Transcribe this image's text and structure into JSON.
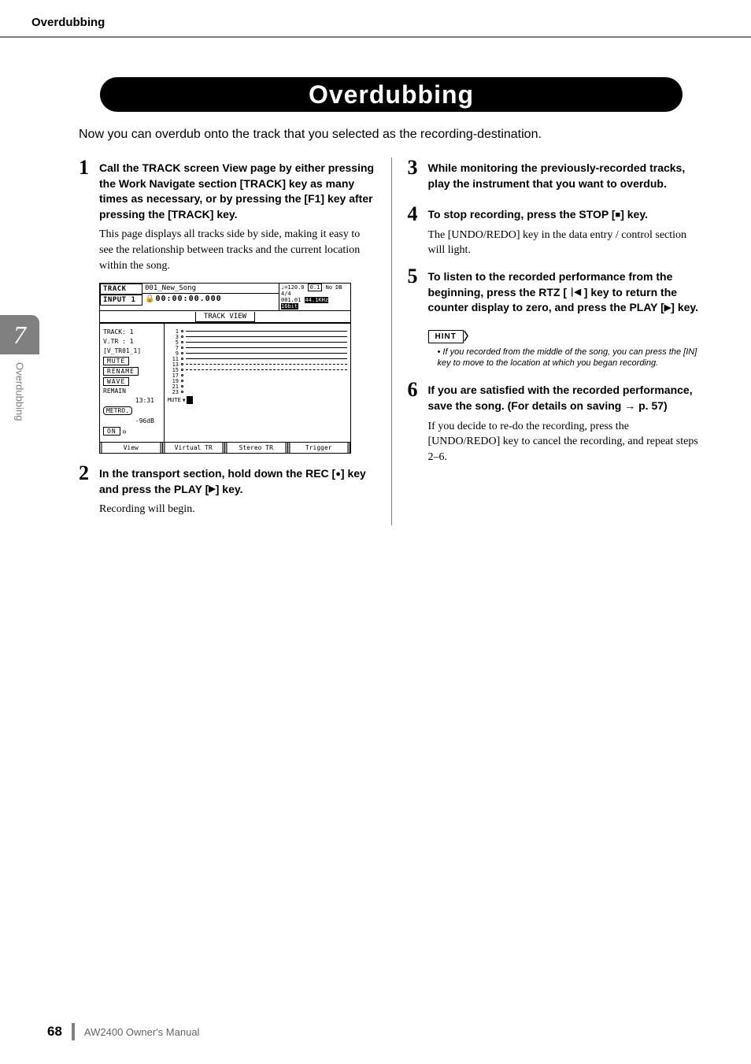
{
  "header": {
    "section": "Overdubbing"
  },
  "chapter_tab": {
    "number": "7",
    "label": "Overdubbing"
  },
  "title": "Overdubbing",
  "intro": "Now you can overdub onto the track that you selected as the recording-destination.",
  "steps": {
    "s1": {
      "num": "1",
      "heading": "Call the TRACK screen View page by either pressing the Work Navigate section [TRACK] key as many times as necessary, or by pressing the [F1] key after pressing the [TRACK] key.",
      "body": "This page displays all tracks side by side, making it easy to see the relationship between tracks and the current location within the song."
    },
    "s2": {
      "num": "2",
      "heading_a": "In the transport section, hold down the REC [",
      "heading_b": "] key and press the PLAY [",
      "heading_c": "] key.",
      "body": "Recording will begin."
    },
    "s3": {
      "num": "3",
      "heading": "While monitoring the previously-recorded tracks, play the instrument that you want to overdub."
    },
    "s4": {
      "num": "4",
      "heading_a": "To stop recording, press the STOP [",
      "heading_b": "] key.",
      "body": "The [UNDO/REDO] key in the data entry / control section will light."
    },
    "s5": {
      "num": "5",
      "heading_a": "To listen to the recorded performance from the beginning, press the RTZ [ ",
      "heading_b": " ] key to return the counter display to zero, and press the PLAY [",
      "heading_c": "] key."
    },
    "s6": {
      "num": "6",
      "heading": "If you are satisfied with the recorded performance, save the song. (For details on saving → p. 57)",
      "body": "If you decide to re-do the recording, press the [UNDO/REDO] key to cancel the recording, and repeat steps 2–6."
    }
  },
  "hint": {
    "label": "HINT",
    "content": "If you recorded from the middle of the song, you can press the [IN] key to move to the location at which you began recording."
  },
  "screen": {
    "title_left_1": "TRACK",
    "title_left_2": "INPUT 1",
    "song_name": "001_New_Song",
    "counter": "🔒00:00:00.000",
    "tempo": "♩=120.0",
    "sig": "4/4",
    "meas": "0.1",
    "nodb": "No DB",
    "loc": "001.01",
    "rate": "44.1KHz 16bit",
    "tab": "TRACK VIEW",
    "left_panel": {
      "track": "TRACK: 1",
      "vtr": "V.TR :  1",
      "vtrname": "[V_TR01_1]",
      "mute": "MUTE",
      "rename": "RENAME",
      "wave": "WAVE",
      "remain": "REMAIN",
      "remain_time": "13:31",
      "metro": "METRO.",
      "db": "-96dB",
      "on": "ON",
      "mute2": "MUTE"
    },
    "track_numbers": [
      "1",
      "3",
      "5",
      "7",
      "9",
      "11",
      "13",
      "15",
      "17",
      "19",
      "21",
      "23"
    ],
    "footer_tabs": [
      "View",
      "Virtual TR",
      "Stereo TR",
      "Trigger"
    ]
  },
  "footer": {
    "page": "68",
    "doc": "AW2400  Owner's Manual"
  },
  "colors": {
    "grey": "#808080",
    "black": "#000000"
  }
}
